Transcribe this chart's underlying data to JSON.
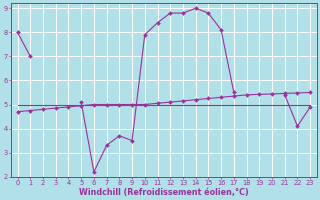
{
  "xlabel": "Windchill (Refroidissement éolien,°C)",
  "background_color": "#b2e0e8",
  "grid_color": "#ffffff",
  "line_color": "#993399",
  "xlim": [
    -0.5,
    23.5
  ],
  "ylim": [
    2,
    9.2
  ],
  "yticks": [
    2,
    3,
    4,
    5,
    6,
    7,
    8,
    9
  ],
  "xticks": [
    0,
    1,
    2,
    3,
    4,
    5,
    6,
    7,
    8,
    9,
    10,
    11,
    12,
    13,
    14,
    15,
    16,
    17,
    18,
    19,
    20,
    21,
    22,
    23
  ],
  "curve1_x": [
    0,
    1,
    5,
    6,
    7,
    8,
    9,
    10,
    11,
    12,
    13,
    14,
    15,
    16,
    17,
    21,
    22,
    23
  ],
  "curve1_y": [
    8.0,
    7.0,
    5.1,
    2.2,
    3.3,
    3.7,
    3.5,
    7.9,
    8.4,
    8.8,
    8.8,
    9.0,
    8.8,
    8.1,
    5.5,
    5.4,
    4.1,
    4.9
  ],
  "curve1_gaps": [
    [
      1,
      5
    ],
    [
      17,
      21
    ]
  ],
  "curve2_x": [
    0,
    1,
    2,
    3,
    4,
    5,
    6,
    7,
    8,
    9,
    10,
    11,
    12,
    13,
    14,
    15,
    16,
    17,
    18,
    19,
    20,
    21,
    22,
    23
  ],
  "curve2_y": [
    4.7,
    4.75,
    4.8,
    4.85,
    4.9,
    4.95,
    5.0,
    5.0,
    5.0,
    5.0,
    5.0,
    5.05,
    5.1,
    5.15,
    5.2,
    5.25,
    5.3,
    5.35,
    5.4,
    5.42,
    5.44,
    5.46,
    5.48,
    5.5
  ],
  "curve3_x": [
    0,
    23
  ],
  "curve3_y": [
    5.0,
    5.0
  ],
  "marker": "D",
  "markersize": 2.0,
  "linewidth": 0.8,
  "tick_fontsize": 4.8,
  "label_fontsize": 5.8,
  "tick_color": "#993399",
  "spine_color": "#993399"
}
